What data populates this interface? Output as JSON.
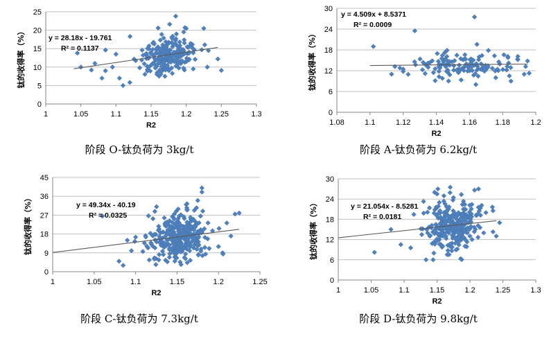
{
  "chart_data": [
    {
      "type": "scatter",
      "caption": "阶段 O-钛负荷为 3kg/t",
      "xlabel": "R2",
      "ylabel": "钛的收得率（%）",
      "xlim": [
        1,
        1.3
      ],
      "xticks": [
        "1",
        "1.05",
        "1.1",
        "1.15",
        "1.2",
        "1.25",
        "1.3"
      ],
      "ylim": [
        0,
        25
      ],
      "yticks": [
        "0",
        "5",
        "10",
        "15",
        "20",
        "25"
      ],
      "trend": {
        "slope": 28.18,
        "intercept": -19.761,
        "x_range": [
          1.04,
          1.245
        ]
      },
      "equation": "y = 28.18x - 19.761",
      "r2_text": "R² = 0.1137",
      "gen": {
        "n": 220,
        "xmean": 1.175,
        "xsd": 0.022,
        "ysd": 2.6,
        "xmin": 1.04,
        "xmax": 1.25,
        "ymin": 4,
        "ymax": 24,
        "seed": 11
      },
      "points": [
        [
          1.05,
          10.0
        ],
        [
          1.045,
          13.8
        ],
        [
          1.065,
          9.2
        ],
        [
          1.07,
          11.0
        ],
        [
          1.08,
          7.0
        ],
        [
          1.085,
          9.0
        ],
        [
          1.095,
          10.0
        ],
        [
          1.1,
          13.5
        ],
        [
          1.11,
          5.0
        ],
        [
          1.105,
          7.0
        ],
        [
          1.12,
          18.3
        ],
        [
          1.185,
          23.8
        ],
        [
          1.16,
          20.6
        ],
        [
          1.2,
          20.5
        ],
        [
          1.245,
          12.2
        ],
        [
          1.225,
          20.5
        ],
        [
          1.21,
          9.5
        ],
        [
          1.23,
          10.0
        ]
      ]
    },
    {
      "type": "scatter",
      "caption": "阶段 A-钛负荷为 6.2kg/t",
      "xlabel": "R2",
      "ylabel": "钛的收得率（%）",
      "xlim": [
        1.08,
        1.2
      ],
      "xticks": [
        "1.08",
        "1.1",
        "1.12",
        "1.14",
        "1.16",
        "1.18",
        "1.2"
      ],
      "ylim": [
        0,
        30
      ],
      "yticks": [
        "0",
        "6",
        "12",
        "18",
        "24",
        "30"
      ],
      "trend": {
        "slope": 4.509,
        "intercept": 8.5371,
        "x_range": [
          1.1,
          1.195
        ]
      },
      "equation": "y = 4.509x + 8.5371",
      "r2_text": "R² = 0.0009",
      "gen": {
        "n": 130,
        "xmean": 1.155,
        "xsd": 0.018,
        "ysd": 2.0,
        "xmin": 1.12,
        "xmax": 1.196,
        "ymin": 8,
        "ymax": 20,
        "seed": 23
      },
      "points": [
        [
          1.102,
          19.0
        ],
        [
          1.113,
          11.0
        ],
        [
          1.115,
          13.2
        ],
        [
          1.118,
          12.8
        ],
        [
          1.127,
          23.5
        ],
        [
          1.163,
          27.5
        ],
        [
          1.185,
          9.0
        ],
        [
          1.193,
          11.0
        ],
        [
          1.195,
          14.8
        ]
      ]
    },
    {
      "type": "scatter",
      "caption": "阶段 C-钛负荷为 7.3kg/t",
      "xlabel": "R2",
      "ylabel": "钛的收得率（%）",
      "xlim": [
        1,
        1.25
      ],
      "xticks": [
        "1",
        "1.05",
        "1.1",
        "1.15",
        "1.2",
        "1.25"
      ],
      "ylim": [
        0,
        45
      ],
      "yticks": [
        "0",
        "9",
        "18",
        "27",
        "36",
        "45"
      ],
      "trend": {
        "slope": 49.34,
        "intercept": -40.19,
        "x_range": [
          1,
          1.225
        ]
      },
      "equation": "y = 49.34x - 40.19",
      "r2_text": "R² = 0.0325",
      "gen": {
        "n": 330,
        "xmean": 1.152,
        "xsd": 0.018,
        "ysd": 5.5,
        "xmin": 1.09,
        "xmax": 1.21,
        "ymin": 3,
        "ymax": 36,
        "seed": 37
      },
      "points": [
        [
          1.06,
          26.5
        ],
        [
          1.08,
          5.0
        ],
        [
          1.085,
          3.0
        ],
        [
          1.09,
          15.0
        ],
        [
          1.095,
          10.0
        ],
        [
          1.1,
          16.5
        ],
        [
          1.18,
          40.0
        ],
        [
          1.18,
          38.0
        ],
        [
          1.175,
          34.0
        ],
        [
          1.22,
          27.5
        ],
        [
          1.225,
          28.0
        ],
        [
          1.215,
          17.0
        ],
        [
          1.205,
          9.0
        ],
        [
          1.2,
          12.0
        ]
      ]
    },
    {
      "type": "scatter",
      "caption": "阶段 D-钛负荷为 9.8kg/t",
      "xlabel": "R2",
      "ylabel": "钛的收得率（%）",
      "xlim": [
        1,
        1.3
      ],
      "xticks": [
        "1",
        "1.05",
        "1.1",
        "1.15",
        "1.2",
        "1.25",
        "1.3"
      ],
      "ylim": [
        0,
        30
      ],
      "yticks": [
        "0",
        "6",
        "12",
        "18",
        "24",
        "30"
      ],
      "trend": {
        "slope": 21.054,
        "intercept": -8.5281,
        "x_range": [
          1,
          1.24
        ]
      },
      "equation": "y = 21.054x - 8.5281",
      "r2_text": "R² = 0.0181",
      "gen": {
        "n": 300,
        "xmean": 1.175,
        "xsd": 0.022,
        "ysd": 3.6,
        "xmin": 1.11,
        "xmax": 1.235,
        "ymin": 6,
        "ymax": 27,
        "seed": 53
      },
      "points": [
        [
          1.055,
          8.2
        ],
        [
          1.08,
          15.0
        ],
        [
          1.095,
          10.5
        ],
        [
          1.245,
          17.0
        ],
        [
          1.17,
          27.5
        ],
        [
          1.15,
          25.5
        ],
        [
          1.24,
          13.0
        ]
      ]
    }
  ]
}
